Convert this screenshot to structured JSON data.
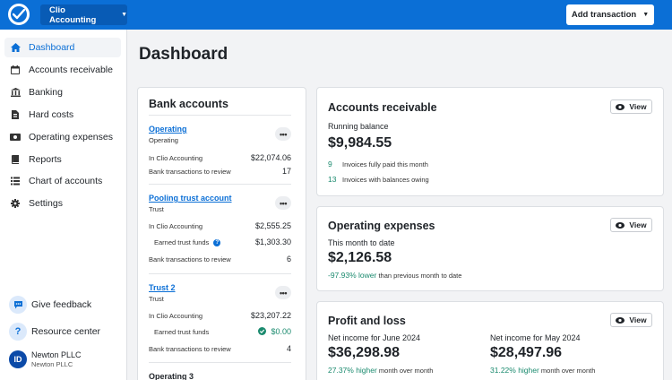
{
  "header": {
    "firm_selector": "Clio Accounting",
    "add_transaction_label": "Add transaction"
  },
  "sidebar": {
    "items": [
      {
        "label": "Dashboard",
        "icon": "home-icon",
        "active": true
      },
      {
        "label": "Accounts receivable",
        "icon": "calendar-icon"
      },
      {
        "label": "Banking",
        "icon": "bank-icon"
      },
      {
        "label": "Hard costs",
        "icon": "hard-costs-icon"
      },
      {
        "label": "Operating expenses",
        "icon": "money-icon"
      },
      {
        "label": "Reports",
        "icon": "book-icon"
      },
      {
        "label": "Chart of accounts",
        "icon": "list-icon"
      },
      {
        "label": "Settings",
        "icon": "gear-icon"
      }
    ],
    "give_feedback": "Give feedback",
    "resource_center": "Resource center",
    "user": {
      "initials": "ID",
      "name": "Newton PLLC",
      "firm": "Newton PLLC"
    }
  },
  "main": {
    "title": "Dashboard",
    "bank_accounts": {
      "title": "Bank accounts",
      "accounts": [
        {
          "name": "Operating",
          "type": "Operating",
          "in_clio_label": "In Clio Accounting",
          "in_clio_value": "$22,074.06",
          "review_label": "Bank transactions to review",
          "review_count": "17"
        },
        {
          "name": "Pooling trust account",
          "type": "Trust",
          "in_clio_label": "In Clio Accounting",
          "in_clio_value": "$2,555.25",
          "earned_label": "Earned trust funds",
          "earned_value": "$1,303.30",
          "review_label": "Bank transactions to review",
          "review_count": "6"
        },
        {
          "name": "Trust 2",
          "type": "Trust",
          "in_clio_label": "In Clio Accounting",
          "in_clio_value": "$23,207.22",
          "earned_label": "Earned trust funds",
          "earned_value": "$0.00",
          "review_label": "Bank transactions to review",
          "review_count": "4"
        },
        {
          "name": "Operating 3"
        }
      ]
    },
    "accounts_receivable": {
      "title": "Accounts receivable",
      "view_label": "View",
      "balance_label": "Running balance",
      "balance_value": "$9,984.55",
      "paid_count": "9",
      "paid_label": "Invoices fully paid this month",
      "owing_count": "13",
      "owing_label": "Invoices with balances owing"
    },
    "operating_expenses": {
      "title": "Operating expenses",
      "view_label": "View",
      "period_label": "This month to date",
      "value": "$2,126.58",
      "change_pct": "-97.93% lower",
      "change_text": "than previous month to date"
    },
    "profit_loss": {
      "title": "Profit and loss",
      "view_label": "View",
      "columns": [
        {
          "label": "Net income for June 2024",
          "value": "$36,298.98",
          "change_pct": "27.37% higher",
          "change_text": "month over month"
        },
        {
          "label": "Net income for May 2024",
          "value": "$28,497.96",
          "change_pct": "31.22% higher",
          "change_text": "month over month"
        }
      ]
    }
  },
  "colors": {
    "brand_blue": "#0b6fd6",
    "positive_green": "#1a8a6e"
  }
}
